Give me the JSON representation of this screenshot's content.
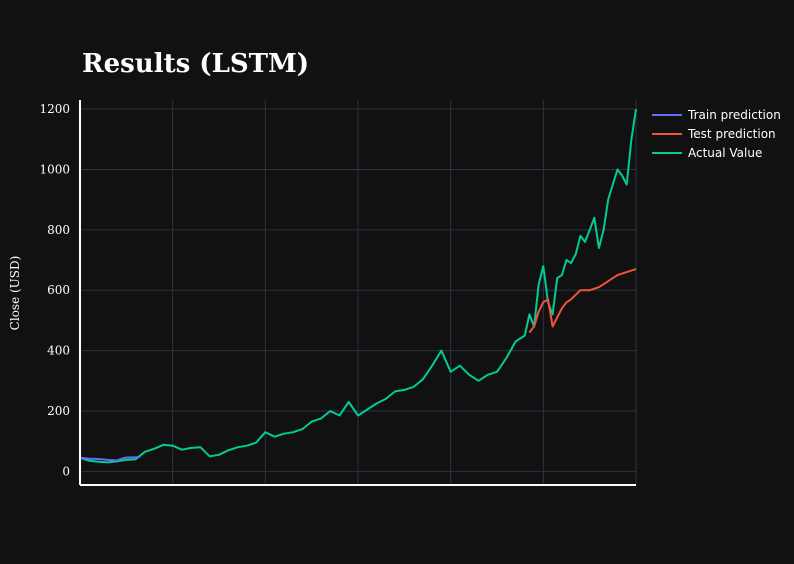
{
  "chart_data": {
    "type": "line",
    "title": "Results (LSTM)",
    "xlabel": "",
    "ylabel": "Close (USD)",
    "ylim": [
      -45,
      1230
    ],
    "xlim": [
      0,
      60
    ],
    "yticks": [
      0,
      200,
      400,
      600,
      800,
      1000,
      1200
    ],
    "xticks": [
      10,
      20,
      30,
      40,
      50,
      60
    ],
    "xtick_labels_visible": false,
    "grid": true,
    "legend_position": "top-right",
    "background": "#111111",
    "grid_color": "#2a3442",
    "axis_color": "#ffffff",
    "series": [
      {
        "name": "Train prediction",
        "color": "#636efa",
        "x": [
          0,
          1,
          2,
          3,
          4,
          4.5,
          5,
          6,
          6.5
        ],
        "y": [
          45,
          42,
          41,
          38,
          36,
          42,
          46,
          47,
          48
        ]
      },
      {
        "name": "Test prediction",
        "color": "#ef553b",
        "x": [
          48.5,
          49,
          49.5,
          50,
          50.5,
          51,
          51.5,
          52,
          52.5,
          53,
          54,
          55,
          56,
          57,
          58,
          59,
          60
        ],
        "y": [
          460,
          480,
          530,
          560,
          570,
          480,
          510,
          540,
          560,
          570,
          600,
          600,
          610,
          630,
          650,
          660,
          670
        ]
      },
      {
        "name": "Actual Value",
        "color": "#00cc96",
        "x": [
          0,
          1,
          2,
          3,
          4,
          5,
          6,
          7,
          8,
          9,
          10,
          11,
          12,
          13,
          14,
          15,
          16,
          17,
          18,
          19,
          20,
          21,
          22,
          23,
          24,
          25,
          26,
          27,
          28,
          29,
          30,
          31,
          32,
          33,
          34,
          35,
          36,
          37,
          38,
          39,
          40,
          41,
          42,
          43,
          44,
          45,
          46,
          47,
          48,
          48.5,
          49,
          49.5,
          50,
          50.5,
          51,
          51.5,
          52,
          52.5,
          53,
          53.5,
          54,
          54.5,
          55,
          55.5,
          56,
          56.5,
          57,
          57.5,
          58,
          58.5,
          59,
          59.5,
          60
        ],
        "y": [
          45,
          35,
          32,
          30,
          33,
          38,
          40,
          65,
          75,
          88,
          85,
          72,
          78,
          80,
          50,
          55,
          70,
          80,
          85,
          95,
          130,
          115,
          125,
          130,
          140,
          165,
          175,
          200,
          185,
          230,
          185,
          205,
          225,
          240,
          265,
          270,
          280,
          305,
          350,
          400,
          330,
          350,
          320,
          300,
          320,
          330,
          375,
          430,
          450,
          520,
          480,
          620,
          680,
          560,
          520,
          640,
          650,
          700,
          690,
          720,
          780,
          760,
          800,
          840,
          740,
          800,
          900,
          950,
          1000,
          980,
          950,
          1100,
          1200
        ]
      }
    ]
  }
}
